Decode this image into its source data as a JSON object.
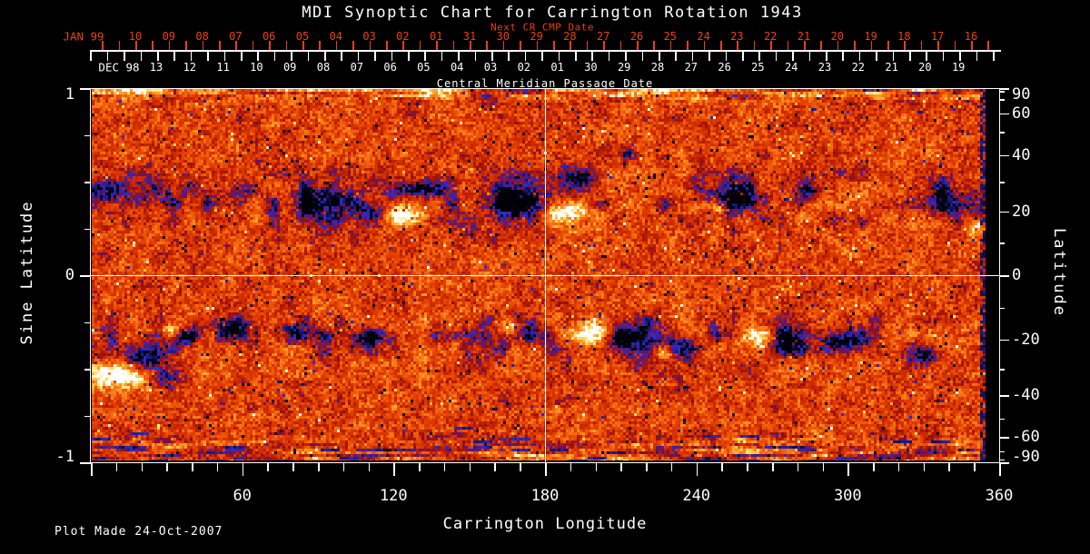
{
  "title": "MDI Synoptic Chart for Carrington Rotation 1943",
  "footer": "Plot Made 24-Oct-2007",
  "colors": {
    "background": "#000000",
    "text": "#ffffff",
    "next_date_accent": "#ee4012",
    "grid_line": "#ffffff"
  },
  "top_axis": {
    "next_title": "Next CR CMP Date",
    "next_prefix": "JAN 99",
    "next_days": [
      "10",
      "09",
      "08",
      "07",
      "06",
      "05",
      "04",
      "03",
      "02",
      "01",
      "31",
      "30",
      "29",
      "28",
      "27",
      "26",
      "25",
      "24",
      "23",
      "22",
      "21",
      "20",
      "19",
      "18",
      "17",
      "16"
    ],
    "cmp_prefix": "DEC 98",
    "cmp_days": [
      "13",
      "12",
      "11",
      "10",
      "09",
      "08",
      "07",
      "06",
      "05",
      "04",
      "03",
      "02",
      "01",
      "30",
      "29",
      "28",
      "27",
      "26",
      "25",
      "24",
      "23",
      "22",
      "21",
      "20",
      "19"
    ],
    "cmp_title": "Central Meridian Passage Date"
  },
  "left_axis": {
    "label": "Sine Latitude",
    "major_ticks": [
      {
        "v": 1,
        "t": "1"
      },
      {
        "v": 0,
        "t": "0"
      },
      {
        "v": -1,
        "t": "-1"
      }
    ],
    "minor_ticks": [
      0.75,
      0.5,
      0.25,
      -0.25,
      -0.5,
      -0.75
    ]
  },
  "right_axis": {
    "label": "Latitude",
    "labeled_ticks": [
      90,
      60,
      40,
      20,
      0,
      -20,
      -40,
      -60,
      -90
    ],
    "minor_step_deg": 10
  },
  "bottom_axis": {
    "label": "Carrington Longitude",
    "labeled_ticks": [
      60,
      120,
      180,
      240,
      300,
      360
    ],
    "minor_step_deg": 10,
    "range": [
      0,
      360
    ]
  },
  "chart_data": {
    "type": "heatmap",
    "title": "MDI Synoptic Chart for Carrington Rotation 1943",
    "xlabel": "Carrington Longitude",
    "xlim": [
      0,
      360
    ],
    "ylabel": "Sine Latitude",
    "ylim": [
      -1,
      1
    ],
    "ylabel_right": "Latitude",
    "legend": "none",
    "grid_lines": {
      "horizontal_at_sine_latitude": [
        0
      ],
      "vertical_at_longitude": [
        180
      ]
    },
    "value_meaning": "line-of-sight photospheric magnetic field; white/yellow = positive polarity, black/blue = negative polarity, red-orange = quiet sun noise",
    "palette_stops": [
      [
        0.0,
        "#000006"
      ],
      [
        0.07,
        "#0d0d3a"
      ],
      [
        0.13,
        "#1b1b8a"
      ],
      [
        0.18,
        "#2d2dd0"
      ],
      [
        0.23,
        "#551880"
      ],
      [
        0.28,
        "#7d1038"
      ],
      [
        0.34,
        "#a51408"
      ],
      [
        0.42,
        "#c62800"
      ],
      [
        0.52,
        "#e23c00"
      ],
      [
        0.62,
        "#ef5d0a"
      ],
      [
        0.72,
        "#fb7f1c"
      ],
      [
        0.8,
        "#ffa832"
      ],
      [
        0.87,
        "#ffd24e"
      ],
      [
        0.93,
        "#fff0a8"
      ],
      [
        1.0,
        "#ffffff"
      ]
    ],
    "background_field": {
      "quiet_level": 0.52,
      "speckle_amplitude": 0.34,
      "activity_band_centers_sine_lat": [
        0.4,
        -0.34
      ],
      "activity_band_sigma": 0.14,
      "top_edge_streaks_above_sine_lat": 0.9,
      "bottom_edge_streaks_below_sine_lat": -0.8,
      "dark_column_longitude_start": 357.4
    },
    "active_regions": [
      {
        "lon": 95,
        "slat": 0.4,
        "rlon": 14,
        "rslat": 0.1,
        "amp": -0.65
      },
      {
        "lon": 113,
        "slat": 0.34,
        "rlon": 6,
        "rslat": 0.05,
        "amp": -0.45
      },
      {
        "lon": 124,
        "slat": 0.33,
        "rlon": 8,
        "rslat": 0.055,
        "amp": 0.6
      },
      {
        "lon": 136,
        "slat": 0.47,
        "rlon": 9,
        "rslat": 0.05,
        "amp": -0.45
      },
      {
        "lon": 172,
        "slat": 0.4,
        "rlon": 13,
        "rslat": 0.11,
        "amp": -0.7
      },
      {
        "lon": 196,
        "slat": 0.5,
        "rlon": 8,
        "rslat": 0.07,
        "amp": -0.5
      },
      {
        "lon": 192,
        "slat": 0.33,
        "rlon": 10,
        "rslat": 0.065,
        "amp": 0.72
      },
      {
        "lon": 216,
        "slat": 0.65,
        "rlon": 3,
        "rslat": 0.03,
        "amp": -0.4
      },
      {
        "lon": 259,
        "slat": 0.44,
        "rlon": 12,
        "rslat": 0.07,
        "amp": -0.5
      },
      {
        "lon": 252,
        "slat": 0.37,
        "rlon": 3,
        "rslat": 0.03,
        "amp": 0.35
      },
      {
        "lon": 288,
        "slat": 0.45,
        "rlon": 4,
        "rslat": 0.04,
        "amp": -0.35
      },
      {
        "lon": 344,
        "slat": 0.4,
        "rlon": 11,
        "rslat": 0.09,
        "amp": -0.55
      },
      {
        "lon": 356,
        "slat": 0.27,
        "rlon": 4,
        "rslat": 0.05,
        "amp": 0.55
      },
      {
        "lon": 20,
        "slat": 0.45,
        "rlon": 18,
        "rslat": 0.1,
        "amp": -0.28
      },
      {
        "lon": 52,
        "slat": 0.4,
        "rlon": 10,
        "rslat": 0.07,
        "amp": -0.22
      },
      {
        "lon": 10,
        "slat": -0.53,
        "rlon": 11,
        "rslat": 0.07,
        "amp": 0.8
      },
      {
        "lon": 21,
        "slat": -0.44,
        "rlon": 9,
        "rslat": 0.08,
        "amp": -0.65
      },
      {
        "lon": 31,
        "slat": -0.55,
        "rlon": 6,
        "rslat": 0.05,
        "amp": -0.35
      },
      {
        "lon": 32,
        "slat": -0.3,
        "rlon": 4,
        "rslat": 0.04,
        "amp": 0.5
      },
      {
        "lon": 39,
        "slat": -0.32,
        "rlon": 5,
        "rslat": 0.05,
        "amp": -0.55
      },
      {
        "lon": 56,
        "slat": -0.28,
        "rlon": 6,
        "rslat": 0.05,
        "amp": -0.5
      },
      {
        "lon": 83,
        "slat": -0.31,
        "rlon": 7,
        "rslat": 0.05,
        "amp": -0.45
      },
      {
        "lon": 79,
        "slat": -0.32,
        "rlon": 2.5,
        "rslat": 0.025,
        "amp": 0.35
      },
      {
        "lon": 115,
        "slat": -0.36,
        "rlon": 8,
        "rslat": 0.06,
        "amp": -0.5
      },
      {
        "lon": 117,
        "slat": -0.37,
        "rlon": 3,
        "rslat": 0.03,
        "amp": 0.38
      },
      {
        "lon": 169,
        "slat": -0.28,
        "rlon": 5,
        "rslat": 0.045,
        "amp": 0.55
      },
      {
        "lon": 177,
        "slat": -0.31,
        "rlon": 7,
        "rslat": 0.055,
        "amp": -0.5
      },
      {
        "lon": 203,
        "slat": -0.31,
        "rlon": 8,
        "rslat": 0.065,
        "amp": 0.72
      },
      {
        "lon": 217,
        "slat": -0.33,
        "rlon": 11,
        "rslat": 0.09,
        "amp": -0.7
      },
      {
        "lon": 237,
        "slat": -0.39,
        "rlon": 8,
        "rslat": 0.06,
        "amp": -0.55
      },
      {
        "lon": 231,
        "slat": -0.41,
        "rlon": 5,
        "rslat": 0.04,
        "amp": 0.5
      },
      {
        "lon": 269,
        "slat": -0.33,
        "rlon": 6,
        "rslat": 0.05,
        "amp": 0.6
      },
      {
        "lon": 280,
        "slat": -0.35,
        "rlon": 8,
        "rslat": 0.065,
        "amp": -0.6
      },
      {
        "lon": 303,
        "slat": -0.36,
        "rlon": 8,
        "rslat": 0.05,
        "amp": -0.5
      },
      {
        "lon": 336,
        "slat": -0.44,
        "rlon": 6,
        "rslat": 0.045,
        "amp": -0.35
      }
    ]
  }
}
